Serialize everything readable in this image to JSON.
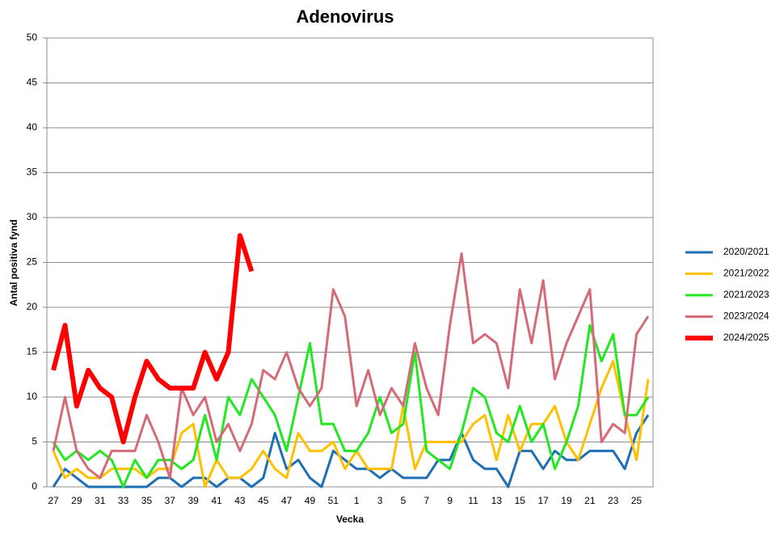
{
  "chart_data": {
    "type": "line",
    "title": "Adenovirus",
    "xlabel": "Vecka",
    "ylabel": "Antal positiva fynd",
    "categories": [
      "27",
      null,
      "29",
      null,
      "31",
      null,
      "33",
      null,
      "35",
      null,
      "37",
      null,
      "39",
      null,
      "41",
      null,
      "43",
      null,
      "45",
      null,
      "47",
      null,
      "49",
      null,
      "51",
      null,
      "1",
      null,
      "3",
      null,
      "5",
      null,
      "7",
      null,
      "9",
      null,
      "11",
      null,
      "13",
      null,
      "15",
      null,
      "17",
      null,
      "19",
      null,
      "21",
      null,
      "23",
      null,
      "25",
      null
    ],
    "ylim": [
      0,
      50
    ],
    "yticks": [
      0,
      5,
      10,
      15,
      20,
      25,
      30,
      35,
      40,
      45,
      50
    ],
    "grid": true,
    "legend": "right",
    "series": [
      {
        "name": "2020/2021",
        "color": "#1f6fb4",
        "line_width": 3,
        "values": [
          0,
          2,
          1,
          0,
          0,
          0,
          0,
          0,
          0,
          1,
          1,
          0,
          1,
          1,
          0,
          1,
          1,
          0,
          1,
          6,
          2,
          3,
          1,
          0,
          4,
          3,
          2,
          2,
          1,
          2,
          1,
          1,
          1,
          3,
          3,
          6,
          3,
          2,
          2,
          0,
          4,
          4,
          2,
          4,
          3,
          3,
          4,
          4,
          4,
          2,
          6,
          8
        ]
      },
      {
        "name": "2021/2022",
        "color": "#ffc000",
        "line_width": 3,
        "values": [
          4,
          1,
          2,
          1,
          1,
          2,
          2,
          2,
          1,
          2,
          2,
          6,
          7,
          0,
          3,
          1,
          1,
          2,
          4,
          2,
          1,
          6,
          4,
          4,
          5,
          2,
          4,
          2,
          2,
          2,
          9,
          2,
          5,
          5,
          5,
          5,
          7,
          8,
          3,
          8,
          4,
          7,
          7,
          9,
          5,
          3,
          7,
          11,
          14,
          8,
          3,
          12
        ]
      },
      {
        "name": "2021/2023",
        "color": "#22e822",
        "line_width": 3,
        "values": [
          5,
          3,
          4,
          3,
          4,
          3,
          0,
          3,
          1,
          3,
          3,
          2,
          3,
          8,
          3,
          10,
          8,
          12,
          10,
          8,
          4,
          10,
          16,
          7,
          7,
          4,
          4,
          6,
          10,
          6,
          7,
          15,
          4,
          3,
          2,
          6,
          11,
          10,
          6,
          5,
          9,
          5,
          7,
          2,
          5,
          9,
          18,
          14,
          17,
          8,
          8,
          10
        ]
      },
      {
        "name": "2023/2024",
        "color": "#d46b78",
        "line_width": 3,
        "values": [
          4,
          10,
          4,
          2,
          1,
          4,
          4,
          4,
          8,
          5,
          1,
          11,
          8,
          10,
          5,
          7,
          4,
          7,
          13,
          12,
          15,
          11,
          9,
          11,
          22,
          19,
          9,
          13,
          8,
          11,
          9,
          16,
          11,
          8,
          18,
          26,
          16,
          17,
          16,
          11,
          22,
          16,
          23,
          12,
          16,
          19,
          22,
          5,
          7,
          6,
          17,
          19
        ]
      },
      {
        "name": "2024/2025",
        "color": "#ff0000",
        "line_width": 6,
        "values": [
          13,
          18,
          9,
          13,
          11,
          10,
          5,
          10,
          14,
          12,
          11,
          11,
          11,
          15,
          12,
          15,
          28,
          24,
          null,
          null,
          null,
          null,
          null,
          null,
          null,
          null,
          null,
          null,
          null,
          null,
          null,
          null,
          null,
          null,
          null,
          null,
          null,
          null,
          null,
          null,
          null,
          null,
          null,
          null,
          null,
          null,
          null,
          null,
          null,
          null,
          null,
          null
        ]
      }
    ]
  }
}
